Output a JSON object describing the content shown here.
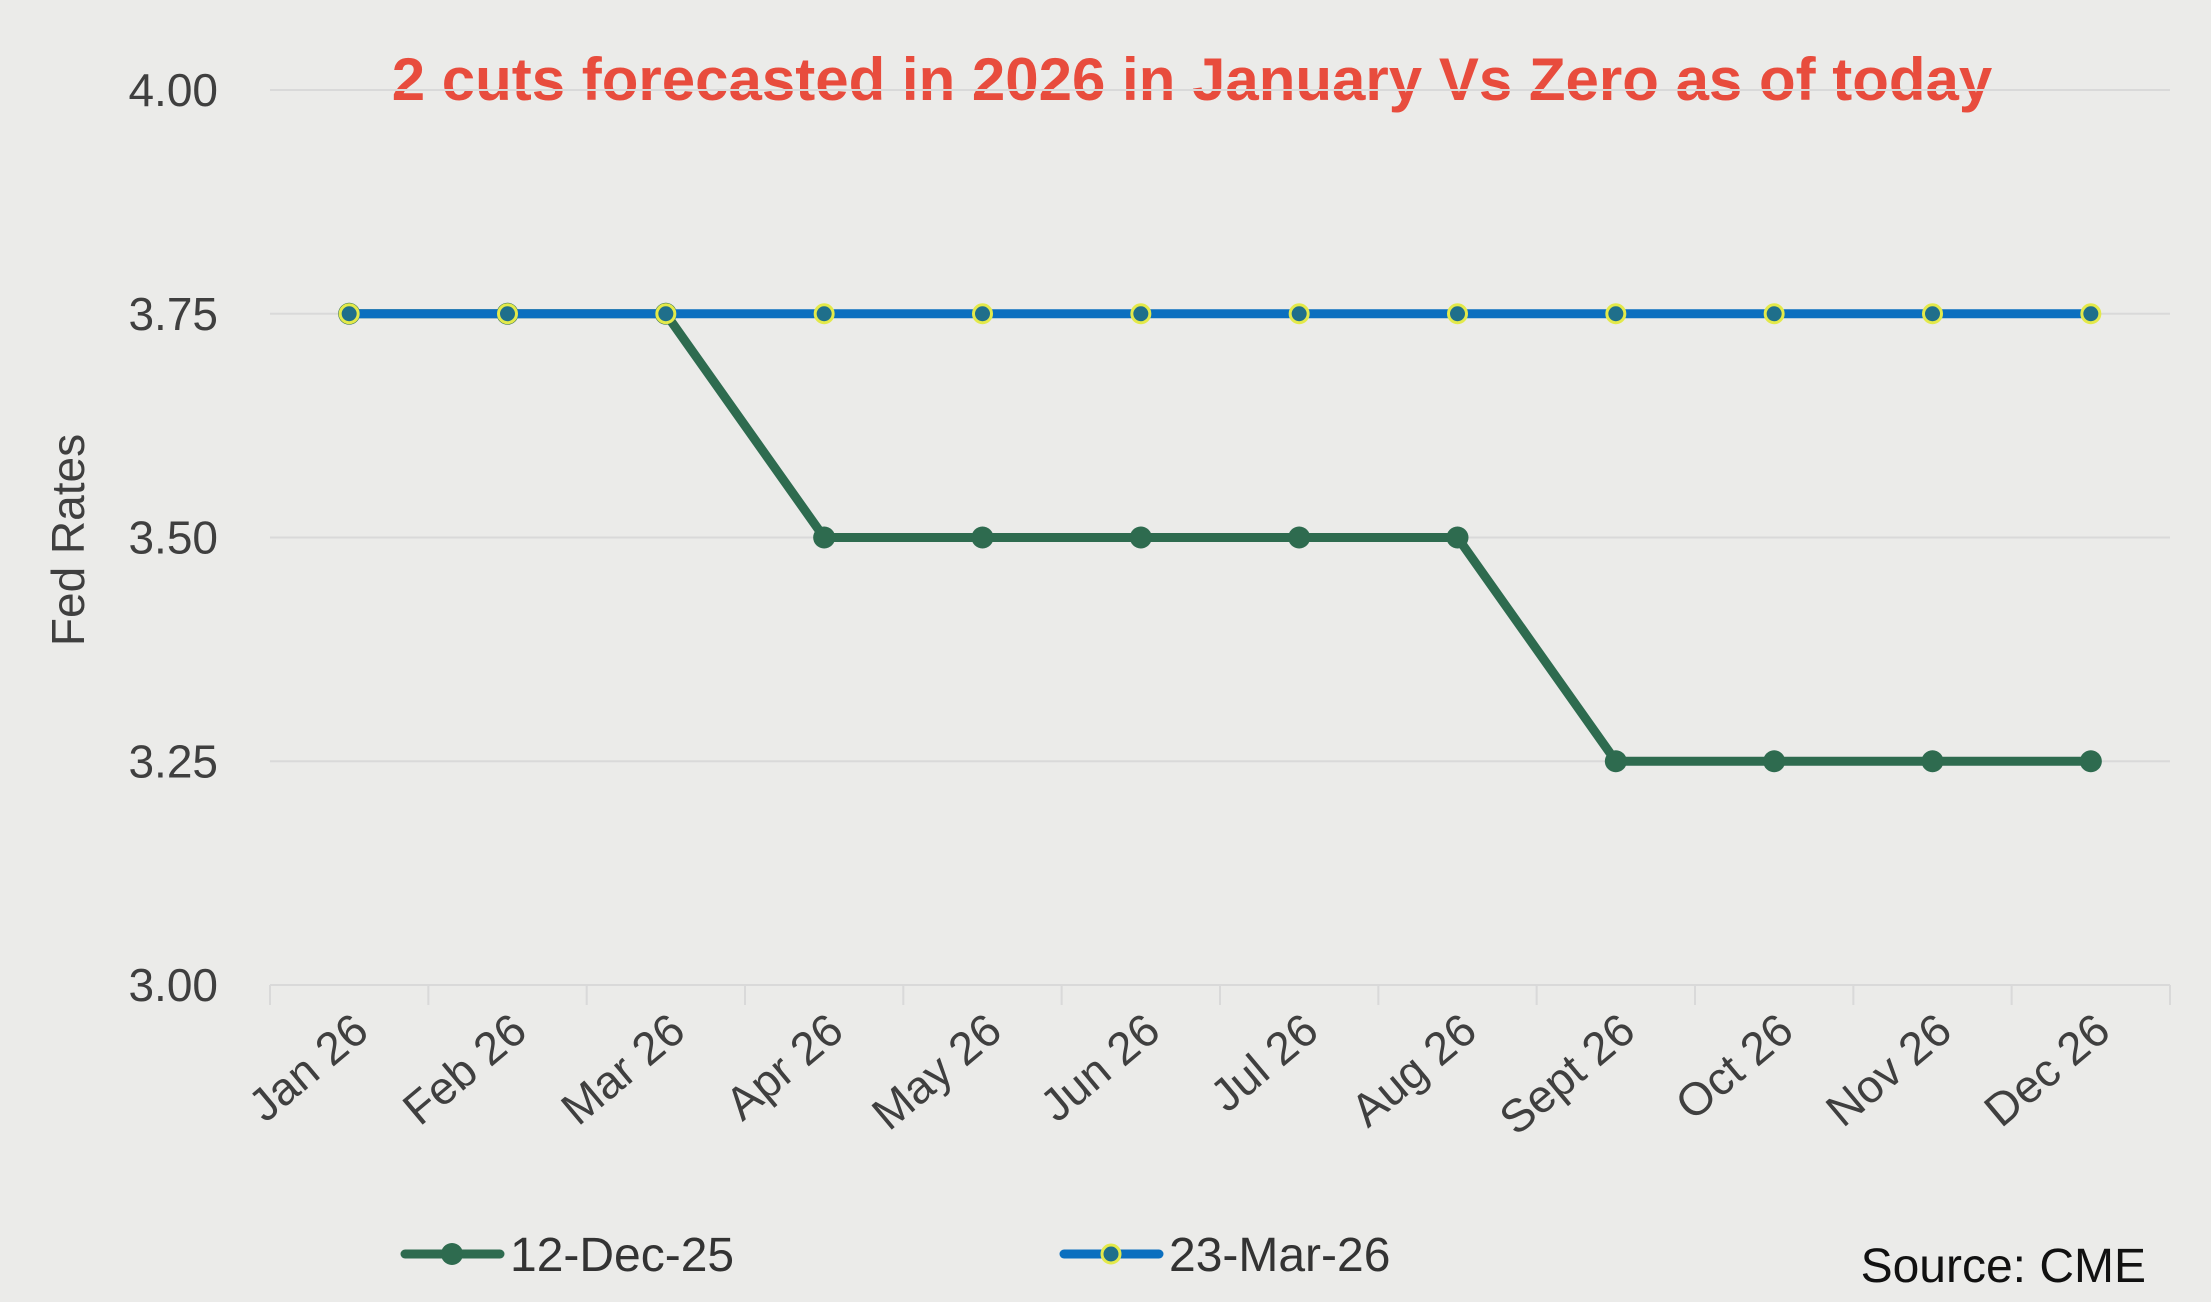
{
  "colors": {
    "background": "#ebebe9",
    "grid": "#d9d9d9",
    "title": "#e84c3d",
    "series_green": "#2e6b4f",
    "series_blue": "#0b6fbf",
    "marker_blue_fill": "#1f6f8b",
    "marker_blue_edge": "#e3e94a"
  },
  "chart_data": {
    "type": "line",
    "title": "2 cuts forecasted in 2026 in January Vs Zero as of today",
    "xlabel": "",
    "ylabel": "Fed Rates",
    "ylim": [
      3.0,
      4.0
    ],
    "yticks": [
      "3.00",
      "3.25",
      "3.50",
      "3.75",
      "4.00"
    ],
    "grid": true,
    "legend_position": "bottom",
    "categories": [
      "Jan 26",
      "Feb 26",
      "Mar 26",
      "Apr 26",
      "May 26",
      "Jun 26",
      "Jul 26",
      "Aug 26",
      "Sept 26",
      "Oct 26",
      "Nov 26",
      "Dec 26"
    ],
    "series": [
      {
        "name": "12-Dec-25",
        "values": [
          3.75,
          3.75,
          3.75,
          3.5,
          3.5,
          3.5,
          3.5,
          3.5,
          3.25,
          3.25,
          3.25,
          3.25
        ]
      },
      {
        "name": "23-Mar-26",
        "values": [
          3.75,
          3.75,
          3.75,
          3.75,
          3.75,
          3.75,
          3.75,
          3.75,
          3.75,
          3.75,
          3.75,
          3.75
        ]
      }
    ],
    "source": "Source: CME"
  }
}
